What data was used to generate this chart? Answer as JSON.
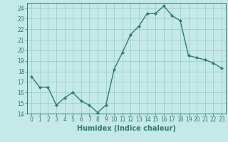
{
  "x": [
    0,
    1,
    2,
    3,
    4,
    5,
    6,
    7,
    8,
    9,
    10,
    11,
    12,
    13,
    14,
    15,
    16,
    17,
    18,
    19,
    20,
    21,
    22,
    23
  ],
  "y": [
    17.5,
    16.5,
    16.5,
    14.8,
    15.5,
    16.0,
    15.2,
    14.8,
    14.1,
    14.8,
    18.2,
    19.8,
    21.5,
    22.3,
    23.5,
    23.5,
    24.2,
    23.3,
    22.8,
    19.5,
    19.3,
    19.1,
    18.8,
    18.3
  ],
  "line_color": "#2e7d6e",
  "marker": "D",
  "marker_size": 2.2,
  "bg_color": "#c5e8e8",
  "grid_color": "#9ecece",
  "xlabel": "Humidex (Indice chaleur)",
  "xlim": [
    -0.5,
    23.5
  ],
  "ylim": [
    14,
    24.5
  ],
  "yticks": [
    14,
    15,
    16,
    17,
    18,
    19,
    20,
    21,
    22,
    23,
    24
  ],
  "xticks": [
    0,
    1,
    2,
    3,
    4,
    5,
    6,
    7,
    8,
    9,
    10,
    11,
    12,
    13,
    14,
    15,
    16,
    17,
    18,
    19,
    20,
    21,
    22,
    23
  ],
  "tick_label_fontsize": 5.5,
  "xlabel_fontsize": 7.0,
  "line_width": 1.0
}
